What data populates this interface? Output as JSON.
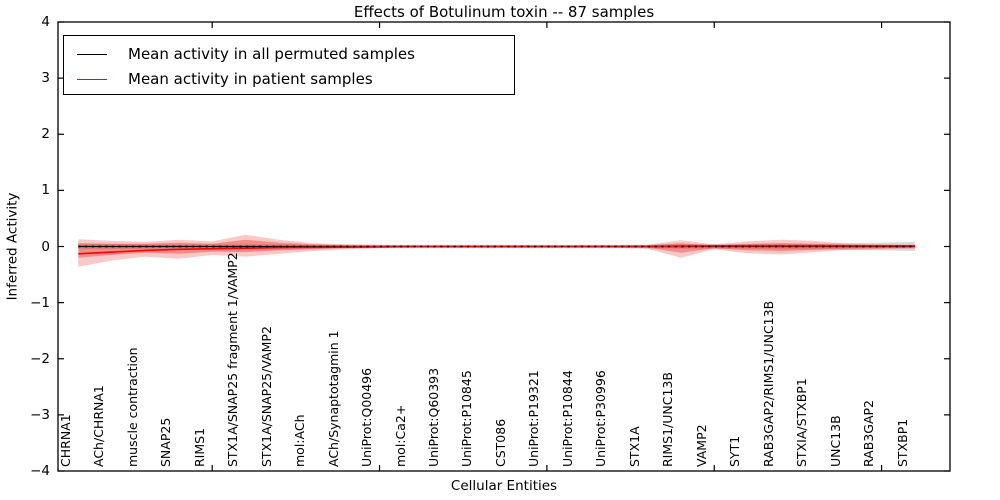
{
  "title": "Effects of Botulinum toxin -- 87 samples",
  "axes": {
    "ylabel": "Inferred Activity",
    "xlabel": "Cellular Entities",
    "ytick_labels": [
      "4",
      "3",
      "2",
      "1",
      "0",
      "−1",
      "−2",
      "−3",
      "−4"
    ],
    "ytick_values": [
      4,
      3,
      2,
      1,
      0,
      -1,
      -2,
      -3,
      -4
    ]
  },
  "legend": {
    "entries": [
      {
        "label": "Mean activity in all permuted samples",
        "color": "#000000"
      },
      {
        "label": "Mean activity in patient samples",
        "color": "#ff0000"
      }
    ]
  },
  "chart_data": {
    "type": "line",
    "title": "Effects of Botulinum toxin -- 87 samples",
    "xlabel": "Cellular Entities",
    "ylabel": "Inferred Activity",
    "ylim": [
      -4,
      4
    ],
    "grid": false,
    "legend_position": "upper left",
    "categories": [
      "CHRNA1",
      "ACh/CHRNA1",
      "muscle contraction",
      "SNAP25",
      "RIMS1",
      "STX1A/SNAP25 fragment 1/VAMP2",
      "STX1A/SNAP25/VAMP2",
      "mol:ACh",
      "ACh/Synaptotagmin 1",
      "UniProt:Q00496",
      "mol:Ca2+",
      "UniProt:Q60393",
      "UniProt:P10845",
      "CST086",
      "UniProt:P19321",
      "UniProt:P10844",
      "UniProt:P30996",
      "STX1A",
      "RIMS1/UNC13B",
      "VAMP2",
      "SYT1",
      "RAB3GAP2/RIMS1/UNC13B",
      "STXIA/STXBP1",
      "UNC13B",
      "RAB3GAP2",
      "STXBP1"
    ],
    "xticks_at": [
      4,
      9,
      14,
      19,
      24
    ],
    "series": [
      {
        "name": "Mean activity in all permuted samples",
        "color": "#000000",
        "width": 1.3,
        "values": [
          0,
          0,
          0,
          0,
          0,
          0,
          0,
          0,
          0,
          0,
          0,
          0,
          0,
          0,
          0,
          0,
          0,
          0,
          0,
          0,
          0,
          0,
          0,
          0,
          0,
          0
        ]
      },
      {
        "name": "Mean activity in patient samples",
        "color": "#ff0000",
        "width": 1.6,
        "values": [
          -0.13,
          -0.1,
          -0.07,
          -0.05,
          -0.04,
          -0.03,
          -0.02,
          -0.015,
          -0.01,
          -0.005,
          0,
          0,
          0,
          0,
          0,
          0,
          0,
          0,
          0.005,
          0.01,
          0.01,
          0.01,
          0.01,
          0.01,
          0.01,
          0.01
        ]
      }
    ],
    "bands": [
      {
        "name": "permuted-std",
        "color": "rgba(125,125,125,0.30)",
        "upper": [
          0.05,
          0.05,
          0.04,
          0.04,
          0.04,
          0.04,
          0.04,
          0.03,
          0.03,
          0.03,
          0.03,
          0.03,
          0.03,
          0.03,
          0.03,
          0.03,
          0.03,
          0.03,
          0.04,
          0.04,
          0.04,
          0.05,
          0.05,
          0.06,
          0.07,
          0.08
        ],
        "lower": [
          -0.05,
          -0.05,
          -0.04,
          -0.04,
          -0.04,
          -0.04,
          -0.04,
          -0.03,
          -0.03,
          -0.03,
          -0.03,
          -0.03,
          -0.03,
          -0.03,
          -0.03,
          -0.03,
          -0.03,
          -0.03,
          -0.04,
          -0.04,
          -0.04,
          -0.05,
          -0.05,
          -0.06,
          -0.07,
          -0.08
        ]
      },
      {
        "name": "patient-outer",
        "color": "rgba(240,35,35,0.25)",
        "upper": [
          0.13,
          0.1,
          0.08,
          0.12,
          0.09,
          0.21,
          0.12,
          0.06,
          0.04,
          0.03,
          0.02,
          0.02,
          0.02,
          0.02,
          0.02,
          0.02,
          0.02,
          0.03,
          0.11,
          0.04,
          0.09,
          0.12,
          0.1,
          0.05,
          0.04,
          0.03
        ],
        "lower": [
          -0.36,
          -0.25,
          -0.18,
          -0.22,
          -0.15,
          -0.18,
          -0.13,
          -0.08,
          -0.05,
          -0.03,
          -0.02,
          -0.02,
          -0.02,
          -0.02,
          -0.02,
          -0.02,
          -0.02,
          -0.04,
          -0.2,
          -0.05,
          -0.12,
          -0.14,
          -0.1,
          -0.06,
          -0.05,
          -0.04
        ]
      },
      {
        "name": "patient-inner",
        "color": "rgba(235,30,30,0.35)",
        "upper": [
          0.06,
          0.05,
          0.05,
          0.07,
          0.05,
          0.12,
          0.07,
          0.04,
          0.02,
          0.01,
          0.01,
          0.01,
          0.01,
          0.01,
          0.01,
          0.01,
          0.01,
          0.02,
          0.06,
          0.02,
          0.05,
          0.06,
          0.05,
          0.03,
          0.02,
          0.02
        ],
        "lower": [
          -0.2,
          -0.15,
          -0.11,
          -0.13,
          -0.09,
          -0.1,
          -0.07,
          -0.05,
          -0.03,
          -0.02,
          -0.01,
          -0.01,
          -0.01,
          -0.01,
          -0.01,
          -0.01,
          -0.01,
          -0.02,
          -0.11,
          -0.03,
          -0.07,
          -0.08,
          -0.06,
          -0.04,
          -0.03,
          -0.02
        ]
      }
    ],
    "zero_line": {
      "value": 0,
      "style": "dotted",
      "color": "#000000"
    }
  }
}
